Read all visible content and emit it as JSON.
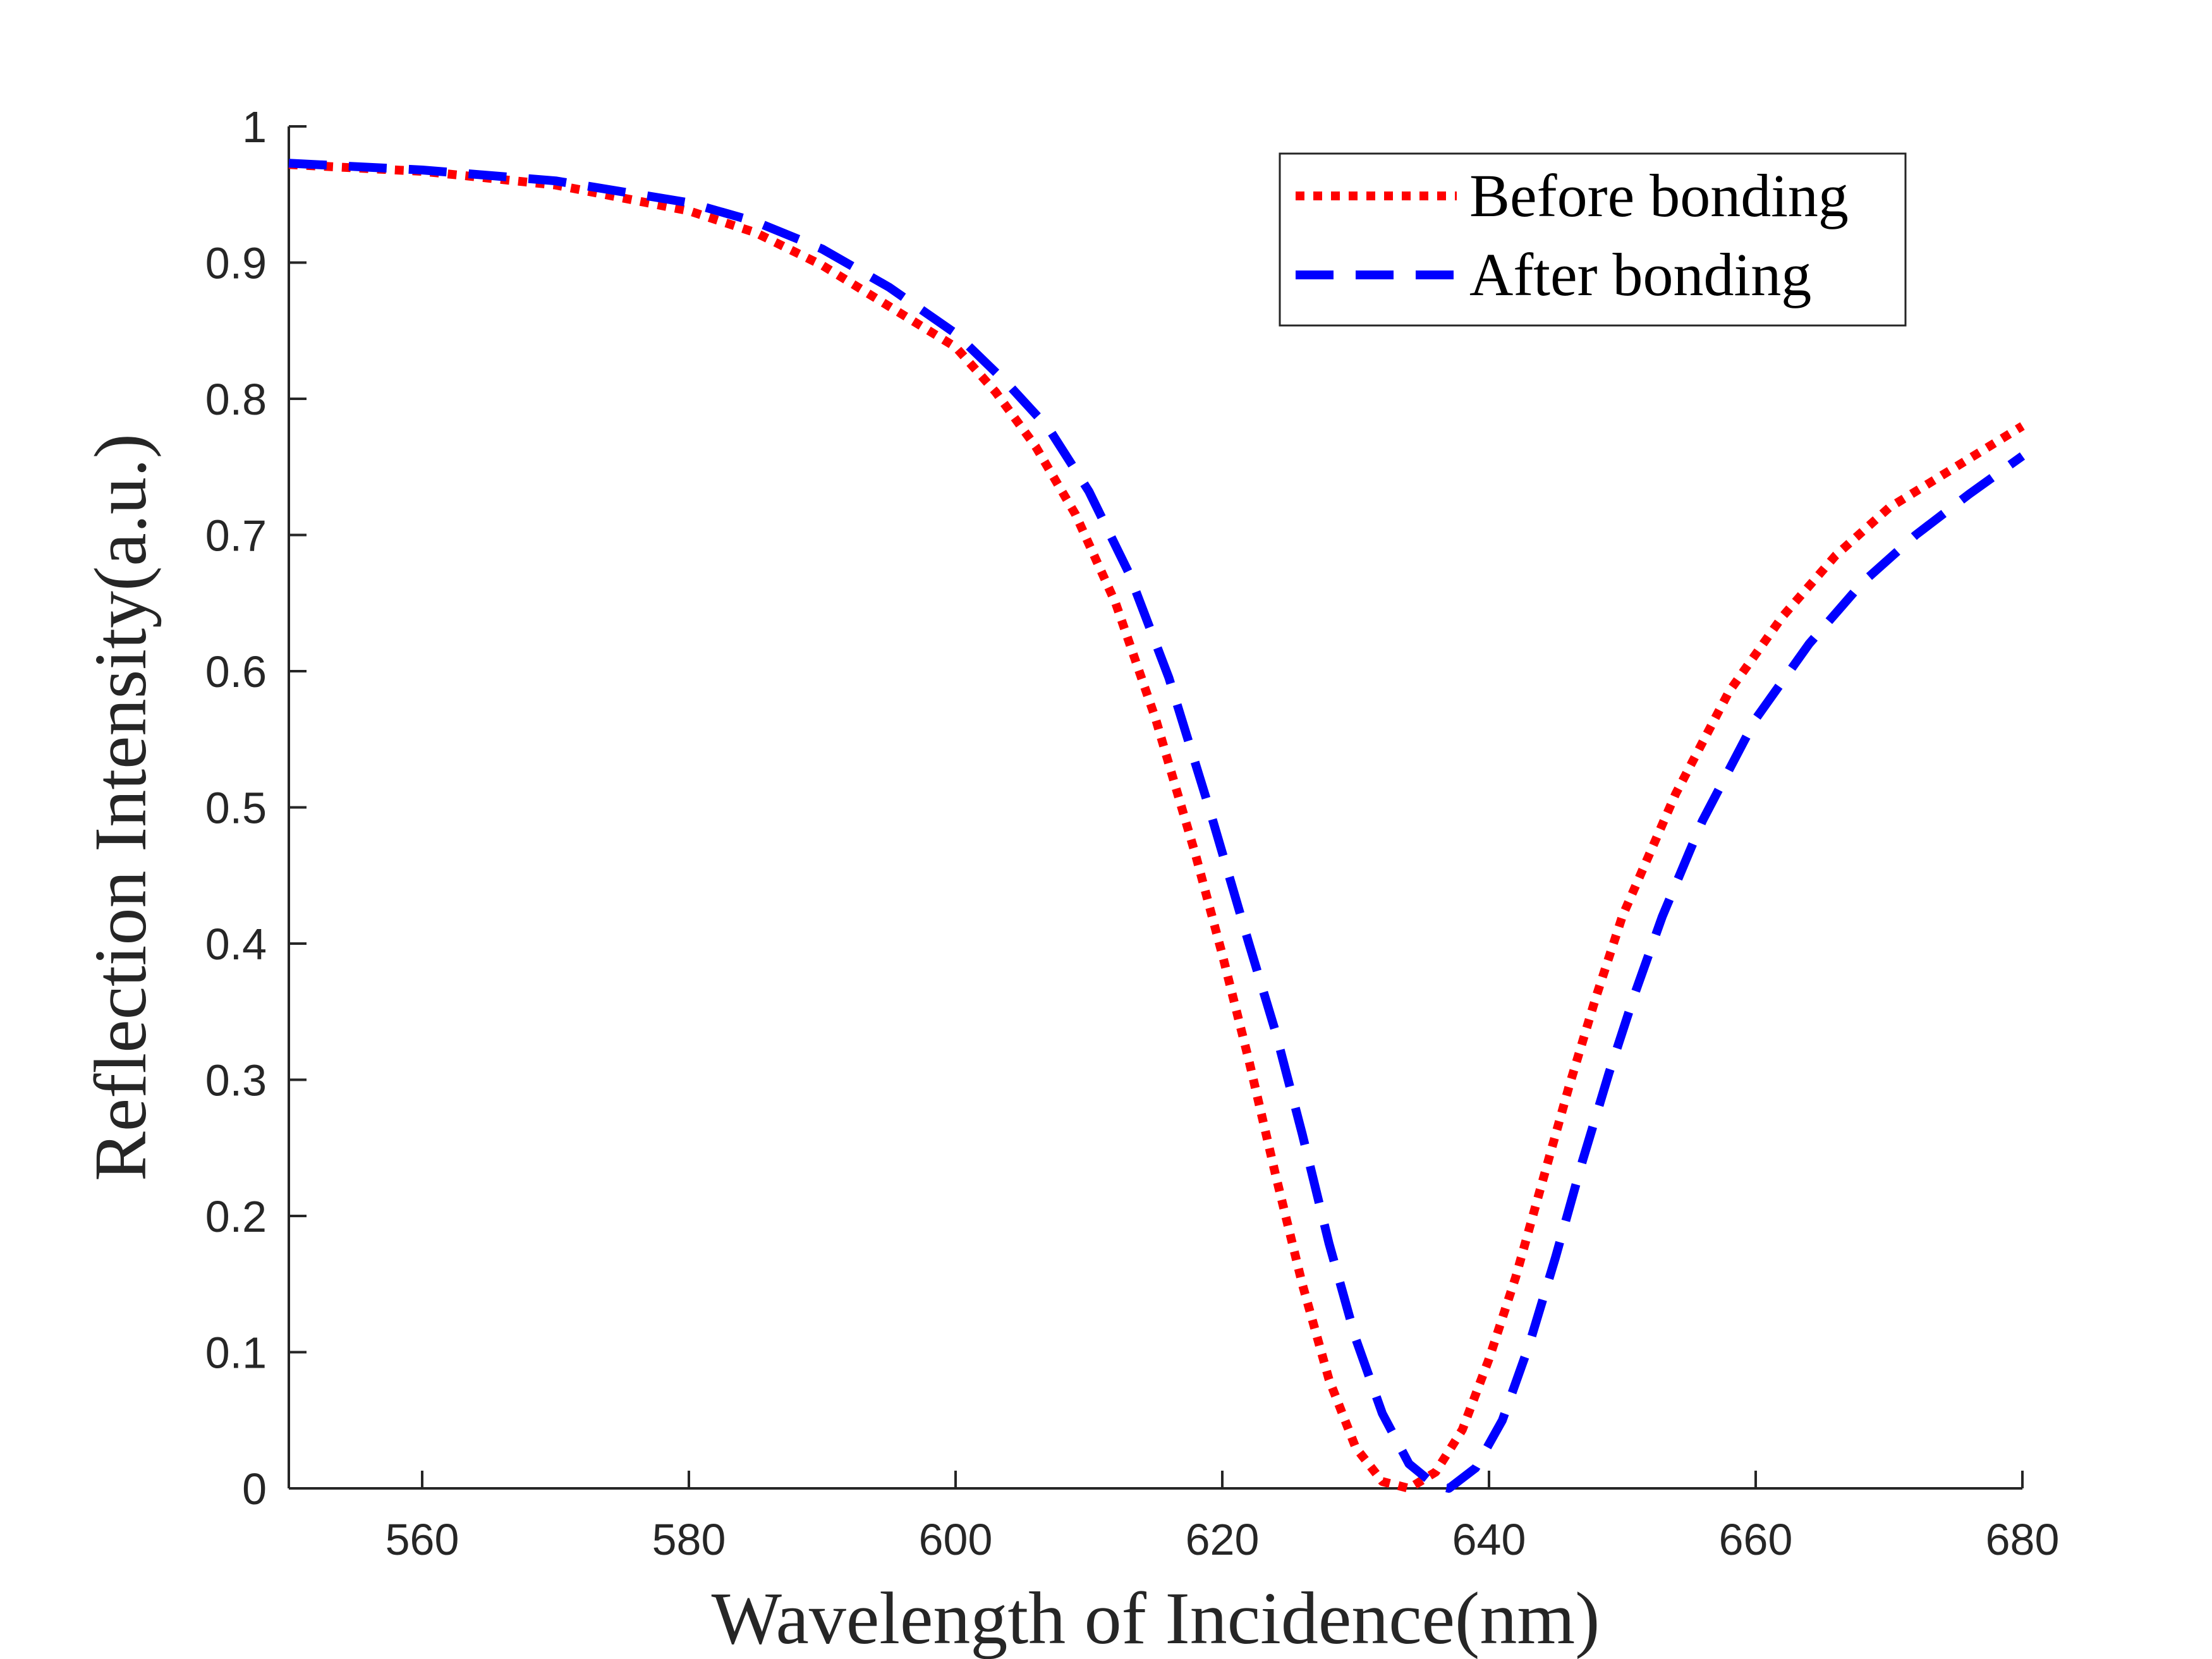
{
  "chart_data": {
    "type": "line",
    "title": "",
    "xlabel": "Wavelength of Incidence(nm)",
    "ylabel": "Reflection Intensity(a.u.)",
    "xlim": [
      550,
      680
    ],
    "ylim": [
      0,
      1
    ],
    "grid": false,
    "legend_position": "top-right",
    "x_ticks": [
      560,
      580,
      600,
      620,
      640,
      660,
      680
    ],
    "x_tick_labels": [
      "560",
      "580",
      "600",
      "620",
      "640",
      "660",
      "680"
    ],
    "y_ticks": [
      0,
      0.1,
      0.2,
      0.3,
      0.4,
      0.5,
      0.6,
      0.7,
      0.8,
      0.9,
      1
    ],
    "y_tick_labels": [
      "0",
      "0.1",
      "0.2",
      "0.3",
      "0.4",
      "0.5",
      "0.6",
      "0.7",
      "0.8",
      "0.9",
      "1"
    ],
    "series": [
      {
        "name": "Before bonding",
        "color": "#ff0000",
        "style": "dotted",
        "x": [
          550,
          560,
          570,
          580,
          585,
          590,
          595,
          600,
          603,
          606,
          609,
          612,
          615,
          618,
          620,
          622,
          624,
          626,
          628,
          630,
          632,
          634,
          636,
          638,
          640,
          642,
          644,
          646,
          648,
          650,
          654,
          658,
          662,
          666,
          670,
          675,
          680
        ],
        "values": [
          0.972,
          0.967,
          0.957,
          0.938,
          0.922,
          0.898,
          0.868,
          0.838,
          0.805,
          0.765,
          0.715,
          0.65,
          0.565,
          0.465,
          0.392,
          0.314,
          0.23,
          0.15,
          0.08,
          0.03,
          0.005,
          0.0,
          0.012,
          0.043,
          0.095,
          0.155,
          0.225,
          0.295,
          0.36,
          0.42,
          0.51,
          0.585,
          0.64,
          0.685,
          0.72,
          0.75,
          0.78
        ]
      },
      {
        "name": "After bonding",
        "color": "#0000ff",
        "style": "dashed",
        "x": [
          550,
          560,
          570,
          580,
          585,
          590,
          595,
          600,
          604,
          607,
          610,
          613,
          616,
          619,
          622,
          624,
          626,
          628,
          630,
          632,
          634,
          636,
          637,
          639,
          641,
          643,
          645,
          647,
          649,
          651,
          653,
          656,
          660,
          664,
          668,
          672,
          676,
          680
        ],
        "values": [
          0.973,
          0.968,
          0.96,
          0.944,
          0.93,
          0.91,
          0.882,
          0.848,
          0.81,
          0.778,
          0.732,
          0.672,
          0.595,
          0.5,
          0.4,
          0.335,
          0.26,
          0.18,
          0.11,
          0.055,
          0.018,
          0.002,
          0.0,
          0.015,
          0.05,
          0.105,
          0.17,
          0.24,
          0.305,
          0.365,
          0.42,
          0.49,
          0.565,
          0.62,
          0.665,
          0.7,
          0.73,
          0.758
        ]
      }
    ]
  }
}
